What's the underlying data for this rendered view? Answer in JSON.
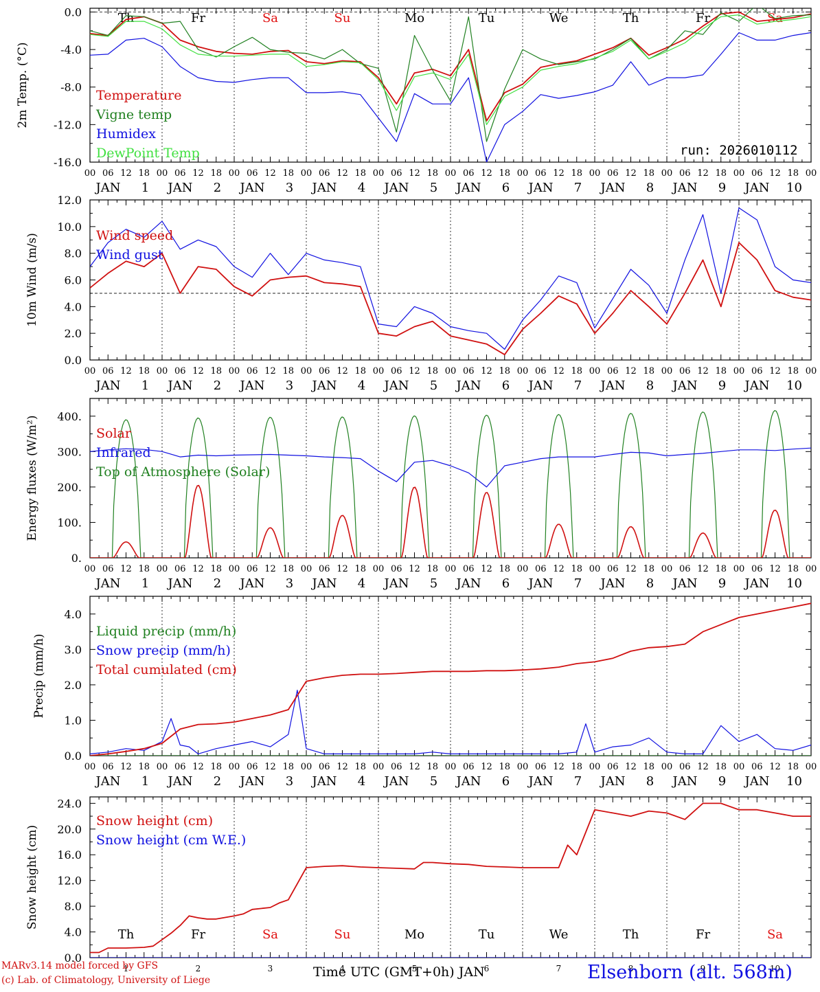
{
  "header": {
    "run_label": "run: 2026010112"
  },
  "time_axis": {
    "hour_ticks": [
      "00",
      "06",
      "12",
      "18"
    ],
    "end_tick": "00",
    "month": "JAN",
    "days": [
      "1",
      "2",
      "3",
      "4",
      "5",
      "6",
      "7",
      "8",
      "9",
      "10"
    ],
    "weekdays": [
      "Th",
      "Fr",
      "Sa",
      "Su",
      "Mo",
      "Tu",
      "We",
      "Th",
      "Fr",
      "Sa"
    ],
    "weekend_color": "#e01010",
    "weekday_color": "#000000",
    "bottom_label": "Time UTC (GMT+0h) JAN"
  },
  "footer": {
    "model_line": "MARv3.14 model forced by GFS",
    "credit_line": "(c) Lab. of Climatology, University of Liege",
    "station": "Elsenborn (alt. 568m)"
  },
  "chart_data": [
    {
      "type": "line",
      "id": "temperature",
      "ylabel": "2m Temp. (°C)",
      "ylim": [
        -16,
        0.4
      ],
      "yticks": [
        "-16.0",
        "-12.0",
        "-8.0",
        "-4.0",
        "0.0"
      ],
      "ytick_values": [
        -16,
        -12,
        -8,
        -4,
        0
      ],
      "reference_line": 0,
      "x_unit": "hours since 2026-01-01 00 UTC",
      "series": [
        {
          "name": "Temperature",
          "color": "#d01010",
          "x": [
            0,
            6,
            12,
            18,
            24,
            30,
            36,
            42,
            48,
            54,
            60,
            66,
            72,
            78,
            84,
            90,
            96,
            102,
            108,
            114,
            120,
            126,
            132,
            138,
            144,
            150,
            156,
            162,
            168,
            174,
            180,
            186,
            192,
            198,
            204,
            210,
            216,
            222,
            228,
            234,
            240
          ],
          "values": [
            -2.3,
            -2.5,
            -0.8,
            -0.5,
            -1.2,
            -3.0,
            -3.7,
            -4.2,
            -4.4,
            -4.5,
            -4.2,
            -4.1,
            -5.3,
            -5.5,
            -5.2,
            -5.3,
            -7.0,
            -9.8,
            -6.5,
            -6.1,
            -6.8,
            -4.0,
            -11.6,
            -8.6,
            -7.7,
            -5.9,
            -5.5,
            -5.2,
            -4.5,
            -3.8,
            -2.8,
            -4.6,
            -3.8,
            -2.9,
            -1.5,
            -0.2,
            0.0,
            -1.0,
            -0.8,
            -0.6,
            -0.2
          ]
        },
        {
          "name": "Vigne temp",
          "color": "#208020",
          "x": [
            0,
            6,
            12,
            18,
            24,
            30,
            36,
            42,
            48,
            54,
            60,
            66,
            72,
            78,
            84,
            90,
            96,
            102,
            108,
            114,
            120,
            126,
            132,
            138,
            144,
            150,
            156,
            162,
            168,
            174,
            180,
            186,
            192,
            198,
            204,
            210,
            216,
            222,
            228,
            234,
            240
          ],
          "values": [
            -2.0,
            -2.5,
            -0.4,
            -0.5,
            -1.2,
            -1.0,
            -4.0,
            -4.8,
            -3.7,
            -2.7,
            -4.0,
            -4.3,
            -4.4,
            -5.0,
            -4.0,
            -5.5,
            -6.0,
            -12.8,
            -2.5,
            -6.2,
            -9.5,
            -0.5,
            -13.8,
            -8.2,
            -4.0,
            -5.0,
            -5.6,
            -5.3,
            -5.0,
            -4.0,
            -2.8,
            -5.0,
            -4.0,
            -2.0,
            -2.4,
            -0.1,
            -1.0,
            0.8,
            -0.7,
            -0.4,
            -0.3
          ]
        },
        {
          "name": "Humidex",
          "color": "#1010e0",
          "x": [
            0,
            6,
            12,
            18,
            24,
            30,
            36,
            42,
            48,
            54,
            60,
            66,
            72,
            78,
            84,
            90,
            96,
            102,
            108,
            114,
            120,
            126,
            132,
            138,
            144,
            150,
            156,
            162,
            168,
            174,
            180,
            186,
            192,
            198,
            204,
            210,
            216,
            222,
            228,
            234,
            240
          ],
          "values": [
            -4.6,
            -4.5,
            -3.0,
            -2.8,
            -3.7,
            -5.8,
            -7.0,
            -7.4,
            -7.5,
            -7.2,
            -7.0,
            -7.0,
            -8.6,
            -8.6,
            -8.5,
            -8.8,
            -11.3,
            -13.8,
            -8.7,
            -9.8,
            -9.8,
            -7.0,
            -16.0,
            -12.0,
            -10.6,
            -8.8,
            -9.2,
            -8.9,
            -8.5,
            -7.8,
            -5.3,
            -7.8,
            -7.0,
            -7.0,
            -6.7,
            -4.5,
            -2.2,
            -3.0,
            -3.0,
            -2.5,
            -2.2
          ]
        },
        {
          "name": "DewPoint Temp",
          "color": "#40e040",
          "x": [
            0,
            6,
            12,
            18,
            24,
            30,
            36,
            42,
            48,
            54,
            60,
            66,
            72,
            78,
            84,
            90,
            96,
            102,
            108,
            114,
            120,
            126,
            132,
            138,
            144,
            150,
            156,
            162,
            168,
            174,
            180,
            186,
            192,
            198,
            204,
            210,
            216,
            222,
            228,
            234,
            240
          ],
          "values": [
            -2.4,
            -2.6,
            -1.0,
            -1.0,
            -1.8,
            -3.5,
            -4.5,
            -4.7,
            -4.7,
            -4.6,
            -4.5,
            -4.5,
            -5.8,
            -5.6,
            -5.3,
            -5.4,
            -7.2,
            -10.5,
            -6.9,
            -6.5,
            -7.2,
            -4.5,
            -12.0,
            -9.0,
            -8.0,
            -6.2,
            -5.8,
            -5.5,
            -4.9,
            -4.2,
            -3.0,
            -5.0,
            -4.2,
            -3.3,
            -1.8,
            -0.5,
            -0.3,
            -1.3,
            -1.0,
            -0.8,
            -0.5
          ]
        }
      ]
    },
    {
      "type": "line",
      "id": "wind",
      "ylabel": "10m Wind (m/s)",
      "ylim": [
        0,
        12
      ],
      "yticks": [
        "0.0",
        "2.0",
        "4.0",
        "6.0",
        "8.0",
        "10.0",
        "12.0"
      ],
      "ytick_values": [
        0,
        2,
        4,
        6,
        8,
        10,
        12
      ],
      "reference_line": 5,
      "series": [
        {
          "name": "Wind speed",
          "color": "#d01010",
          "x": [
            0,
            6,
            12,
            18,
            24,
            30,
            36,
            42,
            48,
            54,
            60,
            66,
            72,
            78,
            84,
            90,
            96,
            102,
            108,
            114,
            120,
            126,
            132,
            138,
            144,
            150,
            156,
            162,
            168,
            174,
            180,
            186,
            192,
            198,
            204,
            210,
            216,
            222,
            228,
            234,
            240
          ],
          "values": [
            5.4,
            6.5,
            7.4,
            7.0,
            8.0,
            5.0,
            7.0,
            6.8,
            5.5,
            4.8,
            6.0,
            6.2,
            6.3,
            5.8,
            5.7,
            5.5,
            2.0,
            1.8,
            2.5,
            2.9,
            1.8,
            1.5,
            1.2,
            0.4,
            2.3,
            3.5,
            4.8,
            4.2,
            2.0,
            3.5,
            5.2,
            4.0,
            2.7,
            5.0,
            7.5,
            4.0,
            8.8,
            7.5,
            5.2,
            4.7,
            4.5
          ]
        },
        {
          "name": "Wind gust",
          "color": "#1010e0",
          "x": [
            0,
            6,
            12,
            18,
            24,
            30,
            36,
            42,
            48,
            54,
            60,
            66,
            72,
            78,
            84,
            90,
            96,
            102,
            108,
            114,
            120,
            126,
            132,
            138,
            144,
            150,
            156,
            162,
            168,
            174,
            180,
            186,
            192,
            198,
            204,
            210,
            216,
            222,
            228,
            234,
            240
          ],
          "values": [
            7.0,
            8.8,
            9.8,
            9.2,
            10.4,
            8.3,
            9.0,
            8.5,
            7.0,
            6.2,
            8.0,
            6.4,
            8.0,
            7.5,
            7.3,
            7.0,
            2.7,
            2.5,
            4.0,
            3.5,
            2.5,
            2.2,
            2.0,
            0.8,
            3.0,
            4.5,
            6.3,
            5.8,
            2.4,
            4.6,
            6.8,
            5.6,
            3.5,
            7.5,
            10.9,
            5.0,
            11.4,
            10.5,
            7.0,
            6.0,
            5.8
          ]
        }
      ]
    },
    {
      "type": "line",
      "id": "energy",
      "ylabel": "Energy fluxes (W/m²)",
      "ylim": [
        0,
        450
      ],
      "yticks": [
        "0.",
        "100.",
        "200.",
        "300.",
        "400."
      ],
      "ytick_values": [
        0,
        100,
        200,
        300,
        400
      ],
      "daily_peaks": {
        "top_of_atmosphere_solar": [
          390,
          395,
          397,
          398,
          401,
          403,
          405,
          408,
          412,
          416
        ],
        "solar": [
          45,
          205,
          85,
          120,
          200,
          185,
          95,
          88,
          70,
          135
        ]
      },
      "series": [
        {
          "name": "Solar",
          "color": "#d01010"
        },
        {
          "name": "Infrared",
          "color": "#1010e0",
          "x": [
            0,
            6,
            12,
            18,
            24,
            30,
            36,
            42,
            48,
            54,
            60,
            66,
            72,
            78,
            84,
            90,
            96,
            102,
            108,
            114,
            120,
            126,
            132,
            138,
            144,
            150,
            156,
            162,
            168,
            174,
            180,
            186,
            192,
            198,
            204,
            210,
            216,
            222,
            228,
            234,
            240
          ],
          "values": [
            300,
            305,
            308,
            306,
            300,
            285,
            290,
            288,
            290,
            291,
            292,
            290,
            288,
            285,
            283,
            280,
            245,
            215,
            270,
            275,
            260,
            240,
            200,
            260,
            270,
            280,
            285,
            285,
            285,
            292,
            298,
            296,
            288,
            292,
            295,
            300,
            305,
            305,
            303,
            307,
            310
          ]
        },
        {
          "name": "Top of Atmosphere (Solar)",
          "color": "#208020"
        }
      ]
    },
    {
      "type": "line",
      "id": "precip",
      "ylabel": "Precip (mm/h)",
      "ylim": [
        0,
        4.5
      ],
      "yticks": [
        "0.0",
        "1.0",
        "2.0",
        "3.0",
        "4.0"
      ],
      "ytick_values": [
        0,
        1,
        2,
        3,
        4
      ],
      "series": [
        {
          "name": "Liquid precip (mm/h)",
          "color": "#208020",
          "x": [
            0,
            240
          ],
          "values": [
            0,
            0
          ]
        },
        {
          "name": "Snow precip (mm/h)",
          "color": "#1010e0",
          "x": [
            0,
            6,
            12,
            18,
            24,
            27,
            30,
            33,
            36,
            42,
            48,
            54,
            60,
            66,
            69,
            72,
            78,
            84,
            90,
            96,
            102,
            108,
            114,
            120,
            126,
            132,
            138,
            144,
            150,
            156,
            162,
            165,
            168,
            174,
            180,
            186,
            192,
            198,
            204,
            210,
            216,
            222,
            228,
            234,
            240
          ],
          "values": [
            0.05,
            0.1,
            0.2,
            0.15,
            0.4,
            1.05,
            0.3,
            0.25,
            0.05,
            0.2,
            0.3,
            0.4,
            0.25,
            0.6,
            1.85,
            0.2,
            0.05,
            0.05,
            0.05,
            0.05,
            0.05,
            0.05,
            0.1,
            0.05,
            0.05,
            0.05,
            0.05,
            0.05,
            0.05,
            0.05,
            0.1,
            0.9,
            0.1,
            0.25,
            0.3,
            0.5,
            0.1,
            0.05,
            0.05,
            0.85,
            0.4,
            0.6,
            0.2,
            0.15,
            0.3
          ]
        },
        {
          "name": "Total cumulated (cm)",
          "color": "#d01010",
          "x": [
            0,
            6,
            12,
            18,
            24,
            30,
            36,
            42,
            48,
            54,
            60,
            66,
            72,
            78,
            84,
            90,
            96,
            102,
            108,
            114,
            120,
            126,
            132,
            138,
            144,
            150,
            156,
            162,
            168,
            174,
            180,
            186,
            192,
            198,
            204,
            210,
            216,
            222,
            228,
            234,
            240
          ],
          "values": [
            0.0,
            0.05,
            0.12,
            0.2,
            0.35,
            0.75,
            0.88,
            0.9,
            0.95,
            1.05,
            1.15,
            1.3,
            2.1,
            2.2,
            2.27,
            2.3,
            2.3,
            2.32,
            2.35,
            2.38,
            2.38,
            2.38,
            2.4,
            2.4,
            2.42,
            2.45,
            2.5,
            2.6,
            2.65,
            2.75,
            2.95,
            3.05,
            3.08,
            3.15,
            3.5,
            3.7,
            3.9,
            4.0,
            4.1,
            4.2,
            4.3
          ]
        }
      ]
    },
    {
      "type": "line",
      "id": "snow",
      "ylabel": "Snow height (cm)",
      "ylim": [
        0,
        25
      ],
      "yticks": [
        "0.0",
        "4.0",
        "8.0",
        "12.0",
        "16.0",
        "20.0",
        "24.0"
      ],
      "ytick_values": [
        0,
        4,
        8,
        12,
        16,
        20,
        24
      ],
      "series": [
        {
          "name": "Snow height (cm)",
          "color": "#d01010",
          "x": [
            0,
            3,
            6,
            12,
            18,
            21,
            24,
            27,
            30,
            33,
            36,
            39,
            42,
            48,
            51,
            54,
            60,
            63,
            66,
            69,
            72,
            78,
            84,
            90,
            96,
            102,
            108,
            111,
            114,
            120,
            126,
            132,
            138,
            144,
            150,
            156,
            159,
            162,
            165,
            168,
            174,
            180,
            186,
            192,
            198,
            204,
            210,
            216,
            222,
            228,
            234,
            240
          ],
          "values": [
            0.8,
            0.8,
            1.5,
            1.5,
            1.6,
            1.8,
            2.8,
            3.8,
            5.0,
            6.5,
            6.2,
            6.0,
            6.0,
            6.5,
            6.8,
            7.5,
            7.8,
            8.5,
            9.0,
            11.5,
            14.0,
            14.2,
            14.3,
            14.1,
            14.0,
            13.9,
            13.8,
            14.8,
            14.8,
            14.6,
            14.5,
            14.2,
            14.1,
            14.0,
            14.0,
            14.0,
            17.5,
            16.0,
            19.5,
            23.0,
            22.5,
            22.0,
            22.8,
            22.5,
            21.5,
            24.0,
            24.0,
            23.0,
            23.0,
            22.5,
            22.0,
            22.0
          ]
        },
        {
          "name": "Snow height (cm W.E.)",
          "color": "#1010e0",
          "x": [
            0,
            240
          ],
          "values": [
            0,
            0
          ]
        }
      ]
    }
  ]
}
